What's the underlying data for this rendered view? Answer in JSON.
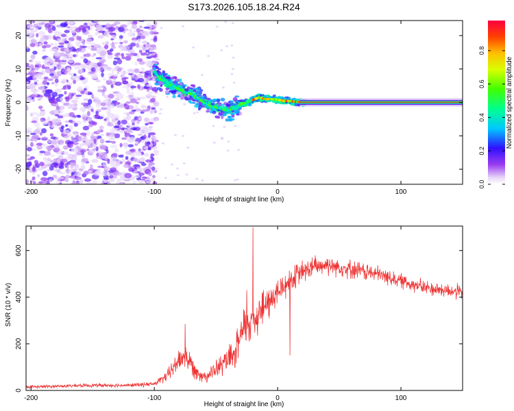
{
  "title": "S173.2026.105.18.24.R24",
  "colors": {
    "spectrum_line": "#d62020",
    "snr_line": "#ee3333",
    "frame": "#000000"
  },
  "chart_data": [
    {
      "type": "heatmap",
      "xlabel": "Height of straight line (km)",
      "ylabel": "Frequency (Hz)",
      "xlim": [
        -204,
        150
      ],
      "ylim": [
        -24.5,
        24.5
      ],
      "xticks": [
        -200,
        -100,
        0,
        100
      ],
      "yticks": [
        -20,
        -10,
        0,
        10,
        20
      ],
      "colorbar": {
        "label": "Normalized spectral amplitude",
        "range": [
          0,
          0.98
        ],
        "ticks": [
          0.0,
          0.2,
          0.4,
          0.6,
          0.8
        ],
        "colormap": "rainbow (white→purple→blue→cyan→green→yellow→orange→red)"
      },
      "ridge": {
        "x": [
          -100,
          -95,
          -90,
          -85,
          -80,
          -75,
          -70,
          -65,
          -60,
          -55,
          -50,
          -45,
          -40,
          -35,
          -30,
          -25,
          -20,
          -15,
          -10,
          -5,
          0,
          5,
          10,
          15,
          20,
          40,
          60,
          80,
          100,
          120,
          150
        ],
        "y": [
          9,
          7,
          6,
          5,
          4,
          3,
          2.5,
          1.5,
          0,
          -1,
          -1.5,
          -2,
          -2.5,
          -1.5,
          -0.5,
          0,
          0.8,
          1.5,
          1,
          1,
          0.8,
          0.5,
          0.4,
          0.2,
          0,
          0,
          0,
          0,
          0,
          0,
          0
        ]
      }
    },
    {
      "type": "line",
      "xlabel": "Height of straight line (km)",
      "ylabel": "SNR (10 * v/v)",
      "xlim": [
        -204,
        150
      ],
      "ylim": [
        0,
        705
      ],
      "xticks": [
        -200,
        -100,
        0,
        100
      ],
      "yticks": [
        0,
        200,
        400,
        600
      ],
      "envelope": {
        "x": [
          -204,
          -180,
          -150,
          -120,
          -100,
          -90,
          -80,
          -75,
          -70,
          -65,
          -60,
          -55,
          -50,
          -45,
          -40,
          -35,
          -30,
          -25,
          -20,
          -15,
          -10,
          -5,
          0,
          10,
          20,
          30,
          40,
          50,
          60,
          80,
          100,
          120,
          150
        ],
        "mean": [
          15,
          18,
          22,
          22,
          28,
          60,
          130,
          150,
          110,
          80,
          60,
          70,
          90,
          110,
          130,
          150,
          230,
          290,
          300,
          340,
          360,
          390,
          420,
          470,
          510,
          530,
          540,
          530,
          520,
          500,
          470,
          440,
          420
        ],
        "spread": [
          8,
          8,
          10,
          10,
          12,
          30,
          60,
          70,
          60,
          45,
          30,
          40,
          50,
          60,
          70,
          80,
          110,
          130,
          120,
          110,
          100,
          90,
          80,
          70,
          60,
          60,
          55,
          50,
          50,
          45,
          40,
          40,
          40
        ]
      },
      "spikes": [
        {
          "x": -20,
          "y": 700
        },
        {
          "x": -25,
          "y": 430
        },
        {
          "x": -75,
          "y": 285
        },
        {
          "x": 10,
          "y": 150
        }
      ]
    }
  ]
}
